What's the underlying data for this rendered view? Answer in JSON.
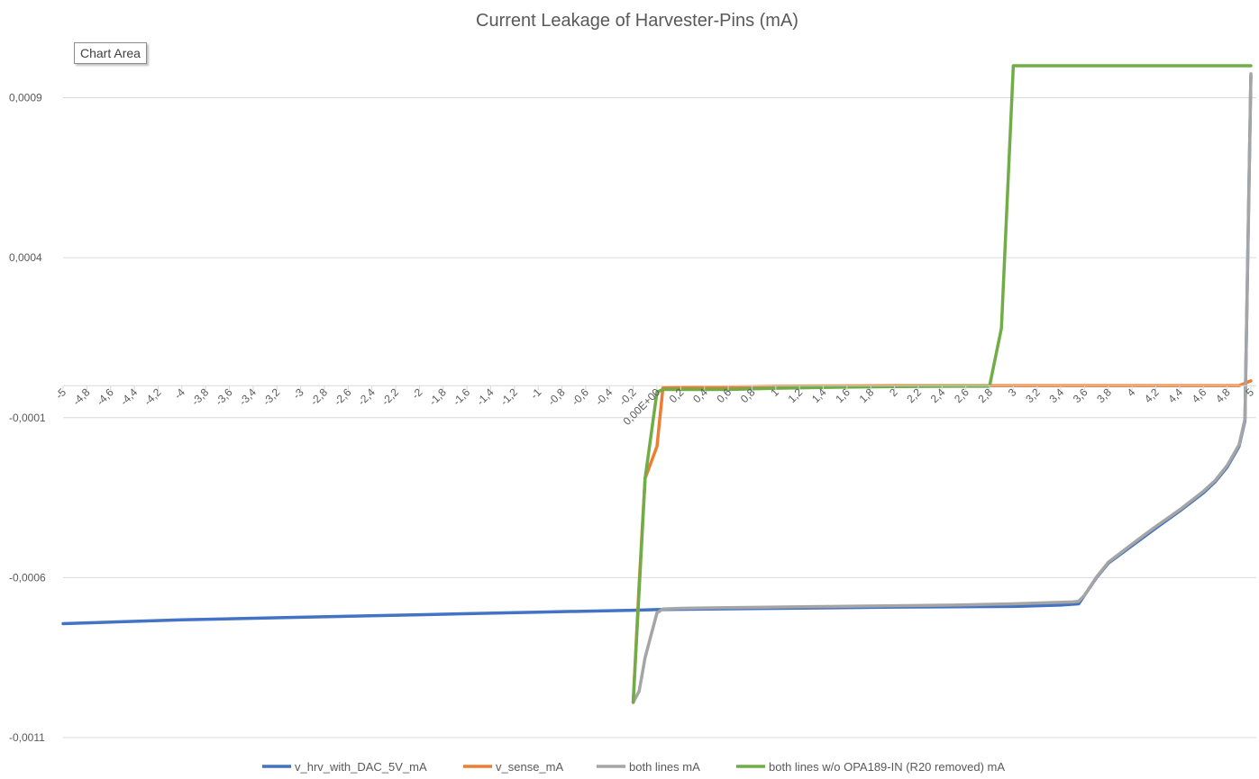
{
  "tooltip": "Chart Area",
  "chart_data": {
    "type": "line",
    "title": "Current Leakage of Harvester-Pins (mA)",
    "xlabel": "",
    "ylabel": "",
    "ylim": [
      -0.0011,
      0.001
    ],
    "y_ticks": [
      0.0009,
      0.0004,
      -0.0001,
      -0.0006,
      -0.0011
    ],
    "y_tick_labels": [
      "0,0009",
      "0,0004",
      "-0,0001",
      "-0,0006",
      "-0,0011"
    ],
    "x_ticks": [
      -5,
      -4.8,
      -4.6,
      -4.4,
      -4.2,
      -4,
      -3.8,
      -3.6,
      -3.4,
      -3.2,
      -3,
      -2.8,
      -2.6,
      -2.4,
      -2.2,
      -2,
      -1.8,
      -1.6,
      -1.4,
      -1.2,
      -1,
      -0.8,
      -0.6,
      -0.4,
      -0.2,
      0,
      0.2,
      0.4,
      0.6,
      0.8,
      1,
      1.2,
      1.4,
      1.6,
      1.8,
      2,
      2.2,
      2.4,
      2.6,
      2.8,
      3,
      3.2,
      3.4,
      3.6,
      3.8,
      4,
      4.2,
      4.4,
      4.6,
      4.8,
      5
    ],
    "x_tick_labels": [
      "-5",
      "-4,8",
      "-4,6",
      "-4,4",
      "-4,2",
      "-4",
      "-3,8",
      "-3,6",
      "-3,4",
      "-3,2",
      "-3",
      "-2,8",
      "-2,6",
      "-2,4",
      "-2,2",
      "-2",
      "-1,8",
      "-1,6",
      "-1,4",
      "-1,2",
      "-1",
      "-0,8",
      "-0,6",
      "-0,4",
      "-0,2",
      "0,00E+00",
      "0,2",
      "0,4",
      "0,6",
      "0,8",
      "1",
      "1,2",
      "1,4",
      "1,6",
      "1,8",
      "2",
      "2,2",
      "2,4",
      "2,6",
      "2,8",
      "3",
      "3,2",
      "3,4",
      "3,6",
      "3,8",
      "4",
      "4,2",
      "4,4",
      "4,6",
      "4,8",
      "5"
    ],
    "grid": true,
    "legend_position": "bottom",
    "series": [
      {
        "name": "v_hrv_with_DAC_5V_mA",
        "color": "#4472C4",
        "x": [
          -5,
          -4,
          -3,
          -2,
          -1,
          -0.2,
          0,
          1,
          2,
          3,
          3.4,
          3.55,
          3.6,
          3.7,
          3.8,
          4,
          4.2,
          4.4,
          4.6,
          4.7,
          4.8,
          4.9,
          4.95,
          5
        ],
        "y": [
          -0.000744,
          -0.000732,
          -0.000724,
          -0.000716,
          -0.000708,
          -0.000702,
          -0.0007,
          -0.000696,
          -0.000692,
          -0.00069,
          -0.000686,
          -0.000682,
          -0.000655,
          -0.0006,
          -0.000555,
          -0.0005,
          -0.000445,
          -0.000392,
          -0.000335,
          -0.0003,
          -0.000255,
          -0.00019,
          -0.00011,
          0.00097
        ]
      },
      {
        "name": "v_sense_mA",
        "color": "#ED7D31",
        "x": [
          -0.2,
          -0.15,
          -0.1,
          0,
          0.05,
          1,
          2,
          3,
          4,
          4.9,
          5
        ],
        "y": [
          -0.00099,
          -0.00062,
          -0.00029,
          -0.00019,
          -7e-06,
          -2e-06,
          0.0,
          0.0,
          0.0,
          0.0,
          1.5e-05
        ]
      },
      {
        "name": "both lines mA",
        "color": "#A5A5A5",
        "x": [
          -0.2,
          -0.15,
          -0.1,
          0,
          0.05,
          0.2,
          0.6,
          1,
          1.5,
          2,
          2.5,
          3,
          3.5,
          3.55,
          3.6,
          3.7,
          3.8,
          4,
          4.2,
          4.4,
          4.6,
          4.7,
          4.8,
          4.9,
          4.95,
          5
        ],
        "y": [
          -0.00099,
          -0.000955,
          -0.00085,
          -0.00071,
          -0.000698,
          -0.000696,
          -0.000694,
          -0.000692,
          -0.00069,
          -0.000688,
          -0.000686,
          -0.000682,
          -0.000676,
          -0.000674,
          -0.000655,
          -0.000598,
          -0.000552,
          -0.000495,
          -0.00044,
          -0.000388,
          -0.00033,
          -0.000296,
          -0.00025,
          -0.000185,
          -0.000105,
          0.000975
        ]
      },
      {
        "name": "both lines w/o OPA189-IN (R20 removed) mA",
        "color": "#70AD47",
        "x": [
          -0.2,
          -0.1,
          0,
          0.05,
          0.2,
          0.6,
          1,
          1.5,
          2,
          2.5,
          2.8,
          2.9,
          3,
          3.5,
          4,
          4.5,
          5
        ],
        "y": [
          -0.00099,
          -0.00029,
          -2e-05,
          -1.2e-05,
          -1.2e-05,
          -1.2e-05,
          -8e-06,
          -5e-06,
          -3e-06,
          -2e-06,
          -2e-06,
          0.00018,
          0.001,
          0.001,
          0.001,
          0.001,
          0.001
        ]
      }
    ]
  }
}
